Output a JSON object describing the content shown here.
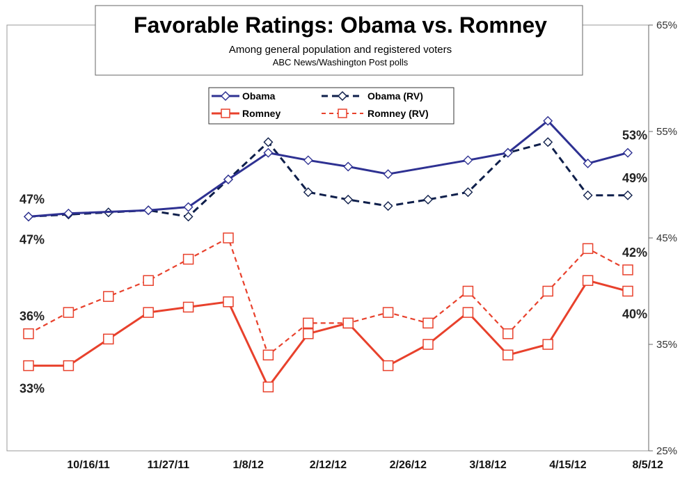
{
  "chart_data": {
    "type": "line",
    "title": "Favorable Ratings: Obama vs. Romney",
    "subtitle": "Among general population and registered voters",
    "source": "ABC News/Washington Post polls",
    "ylim": [
      25,
      65
    ],
    "y_ticks": [
      "65%",
      "55%",
      "45%",
      "35%",
      "25%"
    ],
    "y_tick_values": [
      65,
      55,
      45,
      35,
      25
    ],
    "y_axis_side": "right",
    "x_ticks": [
      "10/16/11",
      "11/27/11",
      "1/8/12",
      "2/12/12",
      "2/26/12",
      "3/18/12",
      "4/15/12",
      "8/5/12"
    ],
    "x_tick_index": [
      1.5,
      3.5,
      5.5,
      7.5,
      9.5,
      11.5,
      13.5,
      15.5
    ],
    "grid": false,
    "legend_position": "top-center",
    "series": [
      {
        "name": "Obama",
        "color": "#2E3192",
        "style": "solid",
        "marker": "diamond",
        "x": [
          0,
          1,
          3,
          4,
          5,
          6,
          7,
          8,
          9,
          11,
          12,
          13,
          14,
          15
        ],
        "values": [
          47,
          47.3,
          47.6,
          47.9,
          50.5,
          53,
          52.3,
          51.7,
          51,
          52.3,
          53,
          56,
          52,
          53
        ]
      },
      {
        "name": "Obama (RV)",
        "color": "#0F1F4B",
        "style": "dashed",
        "marker": "diamond",
        "x": [
          0,
          1,
          2,
          3,
          4,
          5,
          6,
          7,
          8,
          9,
          10,
          11,
          12,
          13,
          14,
          15
        ],
        "values": [
          47,
          47.2,
          47.4,
          47.6,
          47,
          50.5,
          54,
          49.3,
          48.6,
          48,
          48.6,
          49.3,
          53,
          54,
          49,
          49
        ]
      },
      {
        "name": "Romney",
        "color": "#E8412C",
        "style": "solid",
        "marker": "square",
        "x": [
          0,
          1,
          2,
          3,
          4,
          5,
          6,
          7,
          8,
          9,
          10,
          11,
          12,
          13,
          14,
          15
        ],
        "values": [
          33,
          33,
          35.5,
          38,
          38.5,
          39,
          31,
          36,
          37,
          33,
          35,
          38,
          34,
          35,
          41,
          40
        ]
      },
      {
        "name": "Romney (RV)",
        "color": "#E8412C",
        "style": "dashed",
        "marker": "square",
        "x": [
          0,
          1,
          2,
          3,
          4,
          5,
          6,
          7,
          8,
          9,
          10,
          11,
          12,
          13,
          14,
          15
        ],
        "values": [
          36,
          38,
          39.5,
          41,
          43,
          45,
          34,
          37,
          37,
          38,
          37,
          40,
          36,
          40,
          44,
          42
        ]
      }
    ],
    "annotations": [
      {
        "text": "47%",
        "x": 0,
        "y": 47,
        "pos": "above"
      },
      {
        "text": "47%",
        "x": 0,
        "y": 47,
        "pos": "below"
      },
      {
        "text": "36%",
        "x": 0,
        "y": 36,
        "pos": "above"
      },
      {
        "text": "33%",
        "x": 0,
        "y": 33,
        "pos": "below"
      },
      {
        "text": "53%",
        "x": 15,
        "y": 53,
        "pos": "above"
      },
      {
        "text": "49%",
        "x": 15,
        "y": 49,
        "pos": "above"
      },
      {
        "text": "42%",
        "x": 15,
        "y": 42,
        "pos": "above"
      },
      {
        "text": "40%",
        "x": 15,
        "y": 40,
        "pos": "below"
      }
    ]
  }
}
